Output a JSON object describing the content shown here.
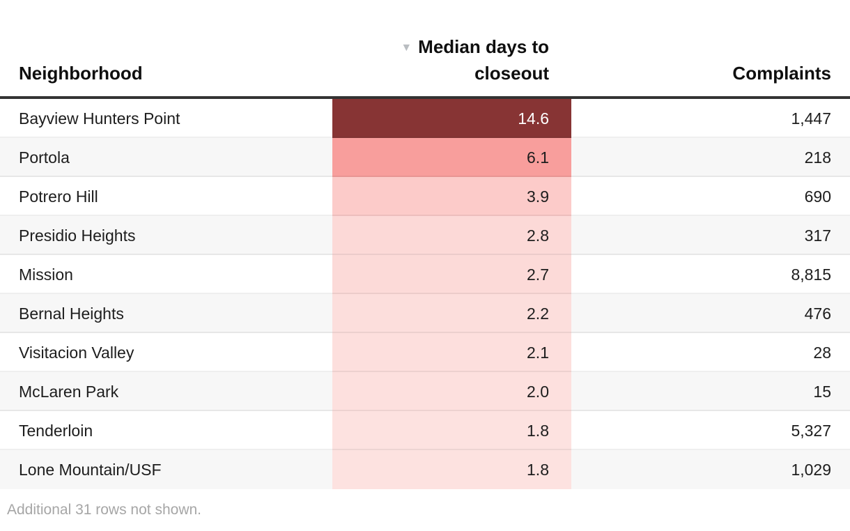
{
  "table": {
    "header": {
      "neighborhood": "Neighborhood",
      "median_line1": "Median days to",
      "median_line2": "closeout",
      "complaints": "Complaints",
      "sort_icon": "▼"
    },
    "rows": [
      {
        "neighborhood": "Bayview Hunters Point",
        "median": "14.6",
        "complaints": "1,447",
        "cell_color": "#873434",
        "text_color": "#ffffff"
      },
      {
        "neighborhood": "Portola",
        "median": "6.1",
        "complaints": "218",
        "cell_color": "#f89e9c",
        "text_color": "#1d1d1d"
      },
      {
        "neighborhood": "Potrero Hill",
        "median": "3.9",
        "complaints": "690",
        "cell_color": "#fccbc9",
        "text_color": "#1d1d1d"
      },
      {
        "neighborhood": "Presidio Heights",
        "median": "2.8",
        "complaints": "317",
        "cell_color": "#fcd9d7",
        "text_color": "#1d1d1d"
      },
      {
        "neighborhood": "Mission",
        "median": "2.7",
        "complaints": "8,815",
        "cell_color": "#fcdad8",
        "text_color": "#1d1d1d"
      },
      {
        "neighborhood": "Bernal Heights",
        "median": "2.2",
        "complaints": "476",
        "cell_color": "#fcdedc",
        "text_color": "#1d1d1d"
      },
      {
        "neighborhood": "Visitacion Valley",
        "median": "2.1",
        "complaints": "28",
        "cell_color": "#fddfdd",
        "text_color": "#1d1d1d"
      },
      {
        "neighborhood": "McLaren Park",
        "median": "2.0",
        "complaints": "15",
        "cell_color": "#fde0de",
        "text_color": "#1d1d1d"
      },
      {
        "neighborhood": "Tenderloin",
        "median": "1.8",
        "complaints": "5,327",
        "cell_color": "#fde2e0",
        "text_color": "#1d1d1d"
      },
      {
        "neighborhood": "Lone Mountain/USF",
        "median": "1.8",
        "complaints": "1,029",
        "cell_color": "#fde2e0",
        "text_color": "#1d1d1d"
      }
    ],
    "note": "Additional 31 rows not shown."
  },
  "colors": {
    "header_rule": "#333333",
    "alt_row_background": "#f7f7f7",
    "row_separator": "#e6e6e6",
    "sort_arrow": "#b9bdc1",
    "note_text": "#a6a6a6",
    "heat_max": "#873434",
    "heat_min": "#fde2e0"
  },
  "chart_data": {
    "type": "table",
    "columns": [
      "Neighborhood",
      "Median days to closeout",
      "Complaints"
    ],
    "sorted_by": "Median days to closeout",
    "sort_order": "descending",
    "heat_column": "Median days to closeout",
    "rows": [
      [
        "Bayview Hunters Point",
        14.6,
        1447
      ],
      [
        "Portola",
        6.1,
        218
      ],
      [
        "Potrero Hill",
        3.9,
        690
      ],
      [
        "Presidio Heights",
        2.8,
        317
      ],
      [
        "Mission",
        2.7,
        8815
      ],
      [
        "Bernal Heights",
        2.2,
        476
      ],
      [
        "Visitacion Valley",
        2.1,
        28
      ],
      [
        "McLaren Park",
        2.0,
        15
      ],
      [
        "Tenderloin",
        1.8,
        5327
      ],
      [
        "Lone Mountain/USF",
        1.8,
        1029
      ]
    ],
    "note": "Additional 31 rows not shown."
  }
}
